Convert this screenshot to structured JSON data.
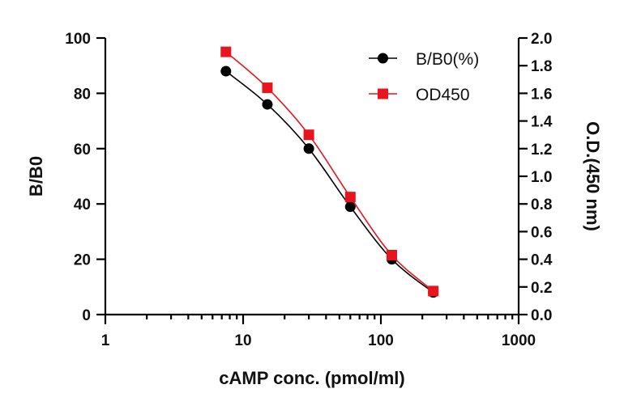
{
  "chart_data": {
    "type": "line",
    "xlabel": "cAMP conc. (pmol/ml)",
    "ylabel": "B/B0",
    "y2label": "O.D.(450 nm)",
    "xscale": "log",
    "xlim": [
      1,
      1000
    ],
    "ylim": [
      0,
      100
    ],
    "y2lim": [
      0,
      2.0
    ],
    "xticks": [
      "1",
      "10",
      "100",
      "1000"
    ],
    "yticks": [
      "0",
      "20",
      "40",
      "60",
      "80",
      "100"
    ],
    "y2ticks": [
      "0.0",
      "0.2",
      "0.4",
      "0.6",
      "0.8",
      "1.0",
      "1.2",
      "1.4",
      "1.6",
      "1.8",
      "2.0"
    ],
    "legend_position": "top-right",
    "series": [
      {
        "name": "B/B0(%)",
        "axis": "left",
        "marker": "circle",
        "color": "#000000",
        "x": [
          7.5,
          15,
          30,
          60,
          120,
          240
        ],
        "y": [
          88,
          76,
          60,
          39,
          20,
          8
        ]
      },
      {
        "name": "OD450",
        "axis": "right",
        "marker": "square",
        "color": "#e8141e",
        "x": [
          7.5,
          15,
          30,
          60,
          120,
          240
        ],
        "y": [
          1.9,
          1.64,
          1.3,
          0.85,
          0.43,
          0.17
        ]
      }
    ]
  }
}
